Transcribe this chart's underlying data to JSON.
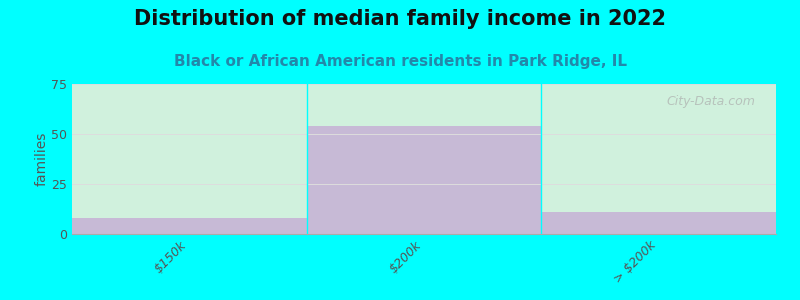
{
  "title": "Distribution of median family income in 2022",
  "subtitle": "Black or African American residents in Park Ridge, IL",
  "categories": [
    "$150k",
    "$200k",
    "> $200k"
  ],
  "values": [
    8,
    54,
    11
  ],
  "bar_color": "#c4a8d4",
  "bar_alpha": 0.75,
  "bg_fill_top": "#e8f0da",
  "bg_fill_bottom": "#f5f8ee",
  "background_color": "#00ffff",
  "ylabel": "families",
  "ylim": [
    0,
    75
  ],
  "yticks": [
    0,
    25,
    50,
    75
  ],
  "watermark": "City-Data.com",
  "title_fontsize": 15,
  "subtitle_fontsize": 11,
  "grid_color": "#dddddd"
}
